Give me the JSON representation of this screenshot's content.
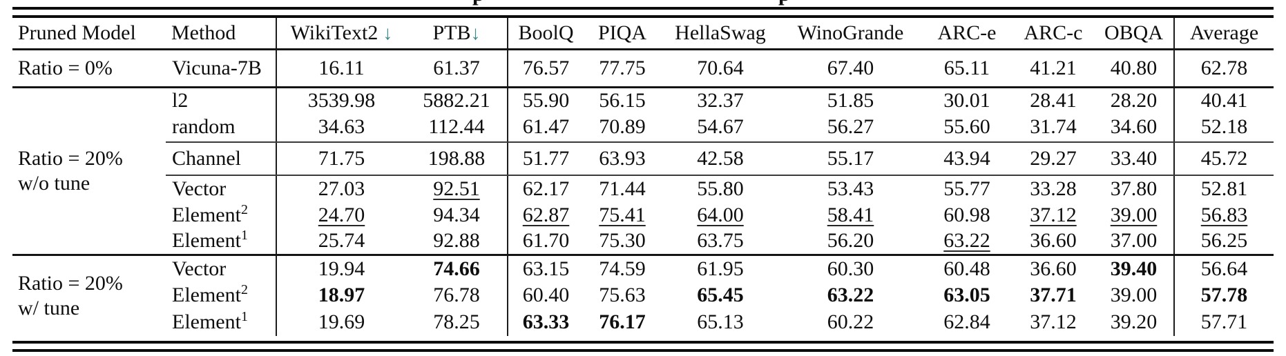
{
  "caption": {
    "fragments": [
      "p",
      "p"
    ]
  },
  "colors": {
    "arrow_accent": "#3a8888",
    "rule": "#141414",
    "text": "#0e0e0e"
  },
  "table": {
    "columns": [
      {
        "key": "pruned_model",
        "label": "Pruned Model",
        "arrow": ""
      },
      {
        "key": "method",
        "label": "Method",
        "arrow": ""
      },
      {
        "key": "wikitext2",
        "label": "WikiText2",
        "arrow": "↓"
      },
      {
        "key": "ptb",
        "label": "PTB",
        "arrow": "↓"
      },
      {
        "key": "boolq",
        "label": "BoolQ",
        "arrow": ""
      },
      {
        "key": "piqa",
        "label": "PIQA",
        "arrow": ""
      },
      {
        "key": "hellaswag",
        "label": "HellaSwag",
        "arrow": ""
      },
      {
        "key": "winogrande",
        "label": "WinoGrande",
        "arrow": ""
      },
      {
        "key": "arc_e",
        "label": "ARC-e",
        "arrow": ""
      },
      {
        "key": "arc_c",
        "label": "ARC-c",
        "arrow": ""
      },
      {
        "key": "obqa",
        "label": "OBQA",
        "arrow": ""
      },
      {
        "key": "average",
        "label": "Average",
        "arrow": ""
      }
    ],
    "groups": [
      {
        "id": "ratio-0",
        "label_lines": [
          "Ratio = 0%"
        ],
        "rows": [
          {
            "method": "Vicuna-7B",
            "sup": "",
            "cells": [
              "16.11",
              "61.37",
              "76.57",
              "77.75",
              "70.64",
              "67.40",
              "65.11",
              "41.21",
              "40.80",
              "62.78"
            ],
            "underline": [],
            "bold": []
          }
        ]
      },
      {
        "id": "ratio-20-wo-tune",
        "label_lines": [
          "Ratio = 20%",
          "w/o tune"
        ],
        "rows": [
          {
            "method": "l2",
            "sup": "",
            "cells": [
              "3539.98",
              "5882.21",
              "55.90",
              "56.15",
              "32.37",
              "51.85",
              "30.01",
              "28.41",
              "28.20",
              "40.41"
            ],
            "underline": [],
            "bold": []
          },
          {
            "method": "random",
            "sup": "",
            "cells": [
              "34.63",
              "112.44",
              "61.47",
              "70.89",
              "54.67",
              "56.27",
              "55.60",
              "31.74",
              "34.60",
              "52.18"
            ],
            "underline": [],
            "bold": []
          },
          {
            "method": "Channel",
            "sup": "",
            "cells": [
              "71.75",
              "198.88",
              "51.77",
              "63.93",
              "42.58",
              "55.17",
              "43.94",
              "29.27",
              "33.40",
              "45.72"
            ],
            "underline": [],
            "bold": []
          },
          {
            "method": "Vector",
            "sup": "",
            "cells": [
              "27.03",
              "92.51",
              "62.17",
              "71.44",
              "55.80",
              "53.43",
              "55.77",
              "33.28",
              "37.80",
              "52.81"
            ],
            "underline": [
              1
            ],
            "bold": []
          },
          {
            "method": "Element",
            "sup": "2",
            "cells": [
              "24.70",
              "94.34",
              "62.87",
              "75.41",
              "64.00",
              "58.41",
              "60.98",
              "37.12",
              "39.00",
              "56.83"
            ],
            "underline": [
              0,
              2,
              3,
              4,
              5,
              7,
              8,
              9
            ],
            "bold": []
          },
          {
            "method": "Element",
            "sup": "1",
            "cells": [
              "25.74",
              "92.88",
              "61.70",
              "75.30",
              "63.75",
              "56.20",
              "63.22",
              "36.60",
              "37.00",
              "56.25"
            ],
            "underline": [
              6
            ],
            "bold": []
          }
        ]
      },
      {
        "id": "ratio-20-w-tune",
        "label_lines": [
          "Ratio = 20%",
          "w/ tune"
        ],
        "rows": [
          {
            "method": "Vector",
            "sup": "",
            "cells": [
              "19.94",
              "74.66",
              "63.15",
              "74.59",
              "61.95",
              "60.30",
              "60.48",
              "36.60",
              "39.40",
              "56.64"
            ],
            "underline": [],
            "bold": [
              1,
              8
            ]
          },
          {
            "method": "Element",
            "sup": "2",
            "cells": [
              "18.97",
              "76.78",
              "60.40",
              "75.63",
              "65.45",
              "63.22",
              "63.05",
              "37.71",
              "39.00",
              "57.78"
            ],
            "underline": [],
            "bold": [
              0,
              4,
              5,
              6,
              7,
              9
            ]
          },
          {
            "method": "Element",
            "sup": "1",
            "cells": [
              "19.69",
              "78.25",
              "63.33",
              "76.17",
              "65.13",
              "60.22",
              "62.84",
              "37.12",
              "39.20",
              "57.71"
            ],
            "underline": [],
            "bold": [
              2,
              3
            ]
          }
        ]
      }
    ]
  }
}
